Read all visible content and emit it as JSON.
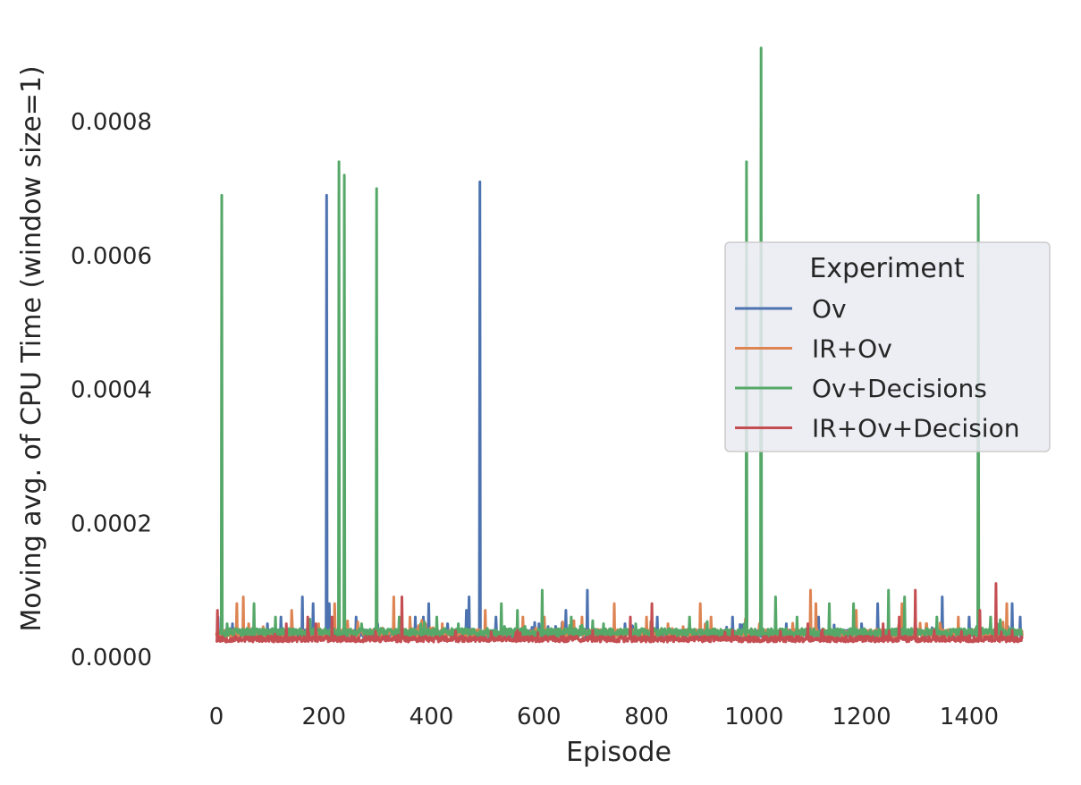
{
  "chart_data": {
    "type": "line",
    "title": "",
    "xlabel": "Episode",
    "ylabel": "Moving avg. of CPU Time (window size=1)",
    "xlim": [
      -50,
      1525
    ],
    "ylim": [
      -6e-05,
      0.00092
    ],
    "xticks": [
      0,
      200,
      400,
      600,
      800,
      1000,
      1200,
      1400
    ],
    "xtick_labels": [
      "0",
      "200",
      "400",
      "600",
      "800",
      "1000",
      "1200",
      "1400"
    ],
    "yticks": [
      0,
      0.0002,
      0.0004,
      0.0006,
      0.0008
    ],
    "ytick_labels": [
      "0.0000",
      "0.0002",
      "0.0004",
      "0.0006",
      "0.0008"
    ],
    "grid": false,
    "legend": {
      "title": "Experiment",
      "placement": "center-right"
    },
    "n_points": 1500,
    "series": [
      {
        "name": "Ov",
        "color": "#4c72b0",
        "baseline": 3.5e-05,
        "noise": 5.5e-06,
        "seed": 11,
        "spikes": [
          [
            3,
            6e-05
          ],
          [
            30,
            5e-05
          ],
          [
            95,
            5e-05
          ],
          [
            120,
            6e-05
          ],
          [
            160,
            9e-05
          ],
          [
            180,
            8e-05
          ],
          [
            205,
            0.00069
          ],
          [
            210,
            8e-05
          ],
          [
            260,
            6e-05
          ],
          [
            300,
            5e-05
          ],
          [
            370,
            6e-05
          ],
          [
            385,
            6e-05
          ],
          [
            395,
            8e-05
          ],
          [
            430,
            5e-05
          ],
          [
            465,
            7e-05
          ],
          [
            470,
            9e-05
          ],
          [
            490,
            0.00071
          ],
          [
            520,
            6e-05
          ],
          [
            600,
            5e-05
          ],
          [
            650,
            7e-05
          ],
          [
            690,
            0.0001
          ],
          [
            760,
            5e-05
          ],
          [
            820,
            6e-05
          ],
          [
            910,
            5e-05
          ],
          [
            960,
            6e-05
          ],
          [
            1060,
            5e-05
          ],
          [
            1120,
            6e-05
          ],
          [
            1200,
            5e-05
          ],
          [
            1230,
            8e-05
          ],
          [
            1300,
            6e-05
          ],
          [
            1350,
            9e-05
          ],
          [
            1400,
            6e-05
          ],
          [
            1480,
            8e-05
          ],
          [
            1495,
            6e-05
          ]
        ]
      },
      {
        "name": "IR+Ov",
        "color": "#dd8452",
        "baseline": 3.6e-05,
        "noise": 5.5e-06,
        "seed": 23,
        "spikes": [
          [
            38,
            8e-05
          ],
          [
            50,
            9e-05
          ],
          [
            60,
            5e-05
          ],
          [
            140,
            7e-05
          ],
          [
            190,
            5e-05
          ],
          [
            220,
            8e-05
          ],
          [
            330,
            9e-05
          ],
          [
            360,
            6e-05
          ],
          [
            420,
            5e-05
          ],
          [
            500,
            7e-05
          ],
          [
            570,
            6e-05
          ],
          [
            610,
            6e-05
          ],
          [
            680,
            6e-05
          ],
          [
            740,
            8e-05
          ],
          [
            800,
            6e-05
          ],
          [
            840,
            5e-05
          ],
          [
            900,
            8e-05
          ],
          [
            920,
            6e-05
          ],
          [
            1010,
            5e-05
          ],
          [
            1105,
            0.0001
          ],
          [
            1115,
            8e-05
          ],
          [
            1190,
            7e-05
          ],
          [
            1275,
            8e-05
          ],
          [
            1320,
            5e-05
          ],
          [
            1380,
            6e-05
          ],
          [
            1470,
            8e-05
          ]
        ]
      },
      {
        "name": "Ov+Decisions",
        "color": "#55a868",
        "baseline": 3.7e-05,
        "noise": 6e-06,
        "seed": 37,
        "spikes": [
          [
            10,
            0.00069
          ],
          [
            20,
            5e-05
          ],
          [
            70,
            8e-05
          ],
          [
            110,
            6e-05
          ],
          [
            228,
            0.00074
          ],
          [
            238,
            0.00072
          ],
          [
            270,
            5e-05
          ],
          [
            298,
            0.0007
          ],
          [
            340,
            6e-05
          ],
          [
            380,
            5e-05
          ],
          [
            410,
            6e-05
          ],
          [
            450,
            5e-05
          ],
          [
            530,
            8e-05
          ],
          [
            560,
            7e-05
          ],
          [
            606,
            0.0001
          ],
          [
            660,
            6e-05
          ],
          [
            720,
            5e-05
          ],
          [
            780,
            5e-05
          ],
          [
            880,
            6e-05
          ],
          [
            986,
            0.00074
          ],
          [
            1013,
            0.00091
          ],
          [
            1040,
            9e-05
          ],
          [
            1080,
            6e-05
          ],
          [
            1140,
            8e-05
          ],
          [
            1185,
            8e-05
          ],
          [
            1250,
            0.0001
          ],
          [
            1280,
            9e-05
          ],
          [
            1340,
            6e-05
          ],
          [
            1417,
            0.00069
          ],
          [
            1440,
            6e-05
          ],
          [
            1500,
            8e-05
          ]
        ]
      },
      {
        "name": "IR+Ov+Decision",
        "color": "#c44e52",
        "baseline": 2.7e-05,
        "noise": 4.5e-06,
        "seed": 53,
        "spikes": [
          [
            2,
            7e-05
          ],
          [
            130,
            5e-05
          ],
          [
            170,
            6e-05
          ],
          [
            185,
            5e-05
          ],
          [
            215,
            6e-05
          ],
          [
            345,
            9e-05
          ],
          [
            560,
            4e-05
          ],
          [
            700,
            4e-05
          ],
          [
            770,
            6e-05
          ],
          [
            810,
            8e-05
          ],
          [
            960,
            4e-05
          ],
          [
            1100,
            5e-05
          ],
          [
            1240,
            5e-05
          ],
          [
            1270,
            6e-05
          ],
          [
            1300,
            0.0001
          ],
          [
            1335,
            4e-05
          ],
          [
            1420,
            7e-05
          ],
          [
            1450,
            0.00011
          ],
          [
            1480,
            4e-05
          ]
        ]
      }
    ]
  }
}
